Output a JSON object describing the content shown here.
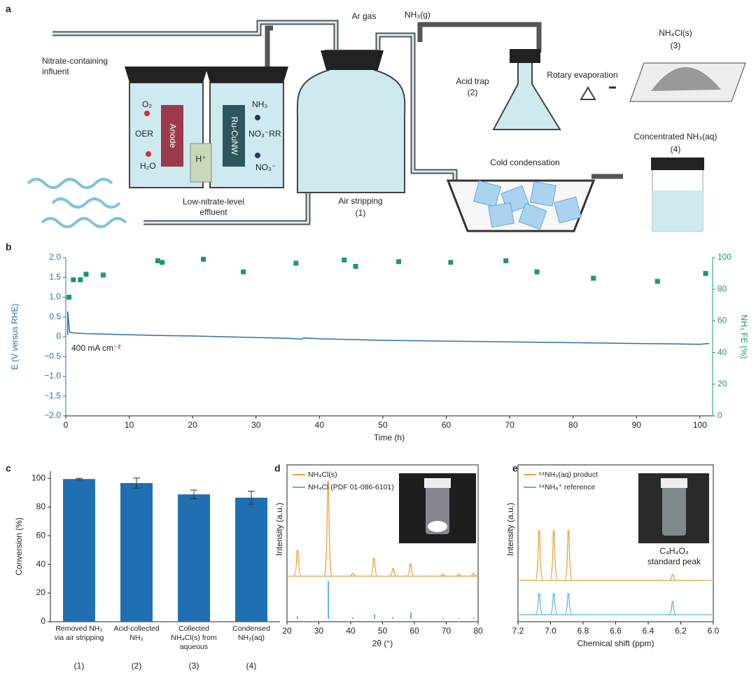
{
  "panel_a": {
    "label": "a",
    "influent": "Nitrate-containing influent",
    "o2": "O₂",
    "oer": "OER",
    "h2o": "H₂O",
    "anode": "Anode",
    "proton": "H⁺",
    "cathode": "Ru-CuNW",
    "nh3": "NH₃",
    "no3rr": "NO₃⁻RR",
    "no3": "NO₃⁻",
    "effluent": "Low-nitrate-level effluent",
    "ar_gas": "Ar gas",
    "nh3_gas": "NH₃(g)",
    "air_stripping": "Air stripping",
    "step1": "(1)",
    "acid_trap": "Acid trap",
    "step2": "(2)",
    "nh4cl": "NH₄Cl(s)",
    "step3": "(3)",
    "rotary": "Rotary evaporation",
    "concentrated": "Concentrated NH₃(aq)",
    "step4": "(4)",
    "cold": "Cold condensation"
  },
  "chart_data": [
    {
      "label": "b",
      "type": "line",
      "xlabel": "Time (h)",
      "ylabel": "E (V versus RHE)",
      "y2label": "NH₃ FE (%)",
      "annotation": "400 mA cm⁻²",
      "xlim": [
        0,
        102
      ],
      "xticks": [
        0,
        10,
        20,
        30,
        40,
        50,
        60,
        70,
        80,
        90,
        100
      ],
      "ylim": [
        -2,
        2
      ],
      "yticks": [
        {
          "value": -2,
          "label": "−2.0"
        },
        {
          "value": -1.5,
          "label": "−1.5"
        },
        {
          "value": -1,
          "label": "−1.0"
        },
        {
          "value": -0.5,
          "label": "−0.5"
        },
        0,
        0.5,
        {
          "value": 1,
          "label": "1.0"
        },
        1.5,
        {
          "value": 2,
          "label": "2.0"
        }
      ],
      "y2lim": [
        0,
        100
      ],
      "y2ticks": [
        0,
        20,
        40,
        60,
        80,
        100
      ],
      "series": [
        {
          "color": "#2a6fb0",
          "x": [
            0.3,
            0.3,
            0.6,
            1,
            3,
            5,
            10,
            15,
            20,
            25,
            30,
            35,
            37.3,
            37.5,
            40,
            45,
            47,
            50,
            55,
            60,
            65,
            70,
            75,
            80,
            85,
            90,
            95,
            100,
            101.5
          ],
          "values": [
            0.05,
            0.64,
            0.12,
            0.1,
            0.08,
            0.07,
            0.05,
            0.03,
            0.02,
            0,
            -0.02,
            -0.04,
            -0.06,
            -0.03,
            -0.05,
            -0.07,
            -0.08,
            -0.09,
            -0.1,
            -0.11,
            -0.12,
            -0.13,
            -0.14,
            -0.15,
            -0.16,
            -0.17,
            -0.18,
            -0.19,
            -0.17
          ]
        },
        {
          "type": "scatter",
          "axis": "y2",
          "color": "#1a9a6c",
          "x": [
            0.5,
            1.2,
            2.3,
            3.2,
            5.9,
            14.5,
            15.2,
            21.7,
            28,
            36.3,
            43.9,
            45.7,
            52.5,
            60.7,
            69.4,
            74.3,
            83.2,
            93.3,
            100.9
          ],
          "values": [
            75,
            86,
            86,
            89.5,
            89,
            98,
            97,
            99,
            91,
            96.5,
            98.5,
            94.5,
            97.5,
            97,
            98,
            91,
            87,
            85,
            90
          ]
        }
      ]
    },
    {
      "label": "c",
      "type": "bar",
      "ylabel": "Conversion (%)",
      "categories": [
        "Removed NH₃ via air stripping",
        "Acid-collected NH₃",
        "Collected NH₄Cl(s) from aqueous",
        "Condensed NH₃(aq)"
      ],
      "category_numbers": [
        "(1)",
        "(2)",
        "(3)",
        "(4)"
      ],
      "values": [
        99.5,
        96.7,
        88.8,
        86.5
      ],
      "errors": [
        0.5,
        3.5,
        3,
        4.5
      ],
      "color": "#1f6fb2",
      "ylim": [
        0,
        105
      ],
      "yticks": [
        0,
        20,
        40,
        60,
        80,
        100
      ]
    },
    {
      "label": "d",
      "type": "peaks",
      "xlabel": "2θ (°)",
      "ylabel": "Intensity (a.u.)",
      "xlim": [
        20,
        80
      ],
      "xticks": [
        20,
        30,
        40,
        50,
        60,
        70,
        80
      ],
      "series": [
        {
          "name": "NH₄Cl(s)",
          "color": "#e8a33a",
          "x": [
            23.3,
            32.9,
            40.7,
            47.3,
            53.3,
            58.8,
            68.9,
            74,
            78.6
          ],
          "values": [
            27,
            100,
            3,
            19,
            8,
            13,
            2,
            2,
            3
          ]
        },
        {
          "name": "NH₄Cl (PDF 01-086-6101)",
          "color": "#5bb5e5",
          "style": "stick",
          "x": [
            23.3,
            33,
            40.7,
            47.5,
            53.3,
            58.9,
            69,
            74,
            78.7
          ],
          "values": [
            7,
            100,
            4,
            12,
            5,
            17,
            3,
            2,
            4
          ]
        }
      ]
    },
    {
      "label": "e",
      "type": "peaks",
      "xlabel": "Chemical shift (ppm)",
      "ylabel": "Intensity (a.u.)",
      "annotation_lines": [
        "C₄H₄O₄",
        "standard peak"
      ],
      "xlim": [
        7.2,
        6.0
      ],
      "xticks": [
        7.2,
        {
          "value": 7,
          "label": "7.0"
        },
        6.8,
        6.6,
        6.4,
        6.2,
        {
          "value": 6,
          "label": "6.0"
        }
      ],
      "series": [
        {
          "name": "¹⁴NH₃(aq) product",
          "color": "#e8a33a",
          "x": [
            7.07,
            6.98,
            6.89,
            6.25
          ],
          "values": [
            100,
            100,
            100,
            12
          ]
        },
        {
          "name": "¹⁴NH₄⁺ reference",
          "color": "#5bb5e5",
          "x": [
            7.07,
            6.98,
            6.89,
            6.25
          ],
          "values": [
            100,
            100,
            100,
            62
          ]
        }
      ]
    }
  ]
}
